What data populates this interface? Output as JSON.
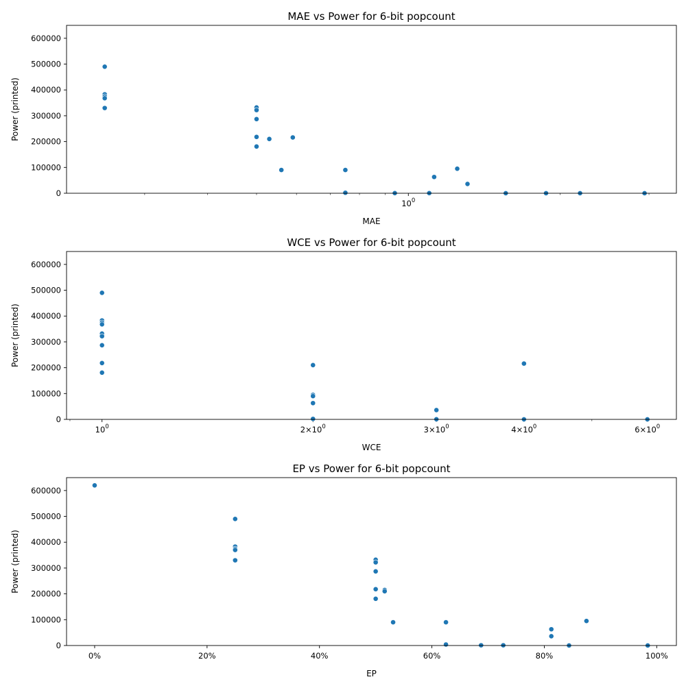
{
  "chart_data": [
    {
      "type": "scatter",
      "title": "MAE vs Power for 6-bit popcount",
      "xlabel": "MAE",
      "ylabel": "Power (printed)",
      "xscale": "log",
      "xlim": [
        0.21,
        3.4
      ],
      "ylim": [
        0,
        650000
      ],
      "yticks": [
        0,
        100000,
        200000,
        300000,
        400000,
        500000,
        600000
      ],
      "xticks": [
        {
          "value": 1.0,
          "label": "10^0"
        }
      ],
      "marker_color": "#1f77b4",
      "grid": false,
      "points": [
        {
          "x": 0.25,
          "y": 490000
        },
        {
          "x": 0.25,
          "y": 383000
        },
        {
          "x": 0.25,
          "y": 375000
        },
        {
          "x": 0.25,
          "y": 368000
        },
        {
          "x": 0.25,
          "y": 330000
        },
        {
          "x": 0.5,
          "y": 332000
        },
        {
          "x": 0.5,
          "y": 322000
        },
        {
          "x": 0.5,
          "y": 287000
        },
        {
          "x": 0.5,
          "y": 218000
        },
        {
          "x": 0.5,
          "y": 181000
        },
        {
          "x": 0.53,
          "y": 210000
        },
        {
          "x": 0.59,
          "y": 216000
        },
        {
          "x": 0.56,
          "y": 90000
        },
        {
          "x": 0.75,
          "y": 90000
        },
        {
          "x": 0.75,
          "y": 2000
        },
        {
          "x": 0.94,
          "y": 500
        },
        {
          "x": 1.1,
          "y": 500
        },
        {
          "x": 1.125,
          "y": 63000
        },
        {
          "x": 1.25,
          "y": 95000
        },
        {
          "x": 1.31,
          "y": 36000
        },
        {
          "x": 1.56,
          "y": 200
        },
        {
          "x": 1.875,
          "y": 200
        },
        {
          "x": 2.19,
          "y": 200
        },
        {
          "x": 2.94,
          "y": 100
        }
      ]
    },
    {
      "type": "scatter",
      "title": "WCE vs Power for 6-bit popcount",
      "xlabel": "WCE",
      "ylabel": "Power (printed)",
      "xscale": "log",
      "xlim": [
        0.89,
        6.6
      ],
      "ylim": [
        0,
        650000
      ],
      "yticks": [
        0,
        100000,
        200000,
        300000,
        400000,
        500000,
        600000
      ],
      "xticks": [
        {
          "value": 1,
          "label": "10^0"
        },
        {
          "value": 2,
          "label": "2×10^0"
        },
        {
          "value": 3,
          "label": "3×10^0"
        },
        {
          "value": 4,
          "label": "4×10^0"
        },
        {
          "value": 6,
          "label": "6×10^0"
        }
      ],
      "marker_color": "#1f77b4",
      "grid": false,
      "points": [
        {
          "x": 1,
          "y": 490000
        },
        {
          "x": 1,
          "y": 383000
        },
        {
          "x": 1,
          "y": 375000
        },
        {
          "x": 1,
          "y": 368000
        },
        {
          "x": 1,
          "y": 332000
        },
        {
          "x": 1,
          "y": 322000
        },
        {
          "x": 1,
          "y": 287000
        },
        {
          "x": 1,
          "y": 218000
        },
        {
          "x": 1,
          "y": 181000
        },
        {
          "x": 2,
          "y": 210000
        },
        {
          "x": 2,
          "y": 95000
        },
        {
          "x": 2,
          "y": 90000
        },
        {
          "x": 2,
          "y": 63000
        },
        {
          "x": 2,
          "y": 2000
        },
        {
          "x": 3,
          "y": 36000
        },
        {
          "x": 3,
          "y": 500
        },
        {
          "x": 4,
          "y": 216000
        },
        {
          "x": 4,
          "y": 200
        },
        {
          "x": 6,
          "y": 100
        }
      ]
    },
    {
      "type": "scatter",
      "title": "EP vs Power for 6-bit popcount",
      "xlabel": "EP",
      "ylabel": "Power (printed)",
      "xscale": "linear",
      "xlim": [
        -5,
        103.5
      ],
      "ylim": [
        0,
        650000
      ],
      "yticks": [
        0,
        100000,
        200000,
        300000,
        400000,
        500000,
        600000
      ],
      "xticks": [
        {
          "value": 0,
          "label": "0%"
        },
        {
          "value": 20,
          "label": "20%"
        },
        {
          "value": 40,
          "label": "40%"
        },
        {
          "value": 60,
          "label": "60%"
        },
        {
          "value": 80,
          "label": "80%"
        },
        {
          "value": 100,
          "label": "100%"
        }
      ],
      "marker_color": "#1f77b4",
      "grid": false,
      "points": [
        {
          "x": 0,
          "y": 620000
        },
        {
          "x": 25,
          "y": 490000
        },
        {
          "x": 25,
          "y": 383000
        },
        {
          "x": 25,
          "y": 375000
        },
        {
          "x": 25,
          "y": 370000
        },
        {
          "x": 25,
          "y": 330000
        },
        {
          "x": 50,
          "y": 332000
        },
        {
          "x": 50,
          "y": 322000
        },
        {
          "x": 50,
          "y": 287000
        },
        {
          "x": 50,
          "y": 218000
        },
        {
          "x": 50,
          "y": 181000
        },
        {
          "x": 51.6,
          "y": 215000
        },
        {
          "x": 51.6,
          "y": 210000
        },
        {
          "x": 53.1,
          "y": 90000
        },
        {
          "x": 62.5,
          "y": 90000
        },
        {
          "x": 62.5,
          "y": 4000
        },
        {
          "x": 68.75,
          "y": 1000
        },
        {
          "x": 72.7,
          "y": 1000
        },
        {
          "x": 81.25,
          "y": 63000
        },
        {
          "x": 81.25,
          "y": 36000
        },
        {
          "x": 84.4,
          "y": 200
        },
        {
          "x": 87.5,
          "y": 95000
        },
        {
          "x": 98.4,
          "y": 100
        }
      ]
    }
  ]
}
